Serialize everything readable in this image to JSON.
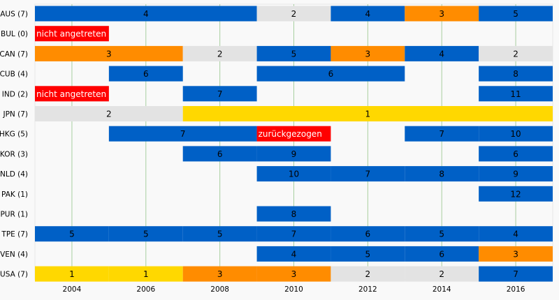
{
  "chart_data": {
    "type": "gantt",
    "x_ticks": [
      "2004",
      "2006",
      "2008",
      "2010",
      "2012",
      "2014",
      "2016"
    ],
    "grid": true,
    "status_colors": {
      "1": "#ffd800",
      "2": "#e3e3e3",
      "3": "#ff8c00",
      "place": "#0060c6",
      "absent": "#ff0000"
    },
    "rows": [
      {
        "label": "AUS (7)",
        "segments": [
          {
            "start": 2003,
            "end": 2009,
            "value": "4",
            "status": "place"
          },
          {
            "start": 2009,
            "end": 2011,
            "value": "2",
            "status": "2"
          },
          {
            "start": 2011,
            "end": 2013,
            "value": "4",
            "status": "place"
          },
          {
            "start": 2013,
            "end": 2015,
            "value": "3",
            "status": "3"
          },
          {
            "start": 2015,
            "end": 2017,
            "value": "5",
            "status": "place"
          }
        ]
      },
      {
        "label": "BUL (0)",
        "segments": [
          {
            "start": 2003,
            "end": 2005,
            "value": "nicht angetreten",
            "status": "absent",
            "align": "left"
          }
        ]
      },
      {
        "label": "CAN (7)",
        "segments": [
          {
            "start": 2003,
            "end": 2007,
            "value": "3",
            "status": "3"
          },
          {
            "start": 2007,
            "end": 2009,
            "value": "2",
            "status": "2"
          },
          {
            "start": 2009,
            "end": 2011,
            "value": "5",
            "status": "place"
          },
          {
            "start": 2011,
            "end": 2013,
            "value": "3",
            "status": "3"
          },
          {
            "start": 2013,
            "end": 2015,
            "value": "4",
            "status": "place"
          },
          {
            "start": 2015,
            "end": 2017,
            "value": "2",
            "status": "2"
          }
        ]
      },
      {
        "label": "CUB (4)",
        "segments": [
          {
            "start": 2005,
            "end": 2007,
            "value": "6",
            "status": "place"
          },
          {
            "start": 2009,
            "end": 2013,
            "value": "6",
            "status": "place"
          },
          {
            "start": 2015,
            "end": 2017,
            "value": "8",
            "status": "place"
          }
        ]
      },
      {
        "label": "IND (2)",
        "segments": [
          {
            "start": 2003,
            "end": 2005,
            "value": "nicht angetreten",
            "status": "absent",
            "align": "left"
          },
          {
            "start": 2007,
            "end": 2009,
            "value": "7",
            "status": "place"
          },
          {
            "start": 2015,
            "end": 2017,
            "value": "11",
            "status": "place"
          }
        ]
      },
      {
        "label": "JPN (7)",
        "segments": [
          {
            "start": 2003,
            "end": 2007,
            "value": "2",
            "status": "2"
          },
          {
            "start": 2007,
            "end": 2017,
            "value": "1",
            "status": "1"
          }
        ]
      },
      {
        "label": "HKG (5)",
        "segments": [
          {
            "start": 2005,
            "end": 2009,
            "value": "7",
            "status": "place"
          },
          {
            "start": 2009,
            "end": 2011,
            "value": "zurückgezogen",
            "status": "absent",
            "align": "left"
          },
          {
            "start": 2013,
            "end": 2015,
            "value": "7",
            "status": "place"
          },
          {
            "start": 2015,
            "end": 2017,
            "value": "10",
            "status": "place"
          }
        ]
      },
      {
        "label": "KOR (3)",
        "segments": [
          {
            "start": 2007,
            "end": 2009,
            "value": "6",
            "status": "place"
          },
          {
            "start": 2009,
            "end": 2011,
            "value": "9",
            "status": "place"
          },
          {
            "start": 2015,
            "end": 2017,
            "value": "6",
            "status": "place"
          }
        ]
      },
      {
        "label": "NLD (4)",
        "segments": [
          {
            "start": 2009,
            "end": 2011,
            "value": "10",
            "status": "place"
          },
          {
            "start": 2011,
            "end": 2013,
            "value": "7",
            "status": "place"
          },
          {
            "start": 2013,
            "end": 2015,
            "value": "8",
            "status": "place"
          },
          {
            "start": 2015,
            "end": 2017,
            "value": "9",
            "status": "place"
          }
        ]
      },
      {
        "label": "PAK (1)",
        "segments": [
          {
            "start": 2015,
            "end": 2017,
            "value": "12",
            "status": "place"
          }
        ]
      },
      {
        "label": "PUR (1)",
        "segments": [
          {
            "start": 2009,
            "end": 2011,
            "value": "8",
            "status": "place"
          }
        ]
      },
      {
        "label": "TPE (7)",
        "segments": [
          {
            "start": 2003,
            "end": 2005,
            "value": "5",
            "status": "place"
          },
          {
            "start": 2005,
            "end": 2007,
            "value": "5",
            "status": "place"
          },
          {
            "start": 2007,
            "end": 2009,
            "value": "5",
            "status": "place"
          },
          {
            "start": 2009,
            "end": 2011,
            "value": "7",
            "status": "place"
          },
          {
            "start": 2011,
            "end": 2013,
            "value": "6",
            "status": "place"
          },
          {
            "start": 2013,
            "end": 2015,
            "value": "5",
            "status": "place"
          },
          {
            "start": 2015,
            "end": 2017,
            "value": "4",
            "status": "place"
          }
        ]
      },
      {
        "label": "VEN (4)",
        "segments": [
          {
            "start": 2009,
            "end": 2011,
            "value": "4",
            "status": "place"
          },
          {
            "start": 2011,
            "end": 2013,
            "value": "5",
            "status": "place"
          },
          {
            "start": 2013,
            "end": 2015,
            "value": "6",
            "status": "place"
          },
          {
            "start": 2015,
            "end": 2017,
            "value": "3",
            "status": "3"
          }
        ]
      },
      {
        "label": "USA (7)",
        "segments": [
          {
            "start": 2003,
            "end": 2005,
            "value": "1",
            "status": "1"
          },
          {
            "start": 2005,
            "end": 2007,
            "value": "1",
            "status": "1"
          },
          {
            "start": 2007,
            "end": 2009,
            "value": "3",
            "status": "3"
          },
          {
            "start": 2009,
            "end": 2011,
            "value": "3",
            "status": "3"
          },
          {
            "start": 2011,
            "end": 2013,
            "value": "2",
            "status": "2"
          },
          {
            "start": 2013,
            "end": 2015,
            "value": "2",
            "status": "2"
          },
          {
            "start": 2015,
            "end": 2017,
            "value": "7",
            "status": "place"
          }
        ]
      }
    ]
  }
}
